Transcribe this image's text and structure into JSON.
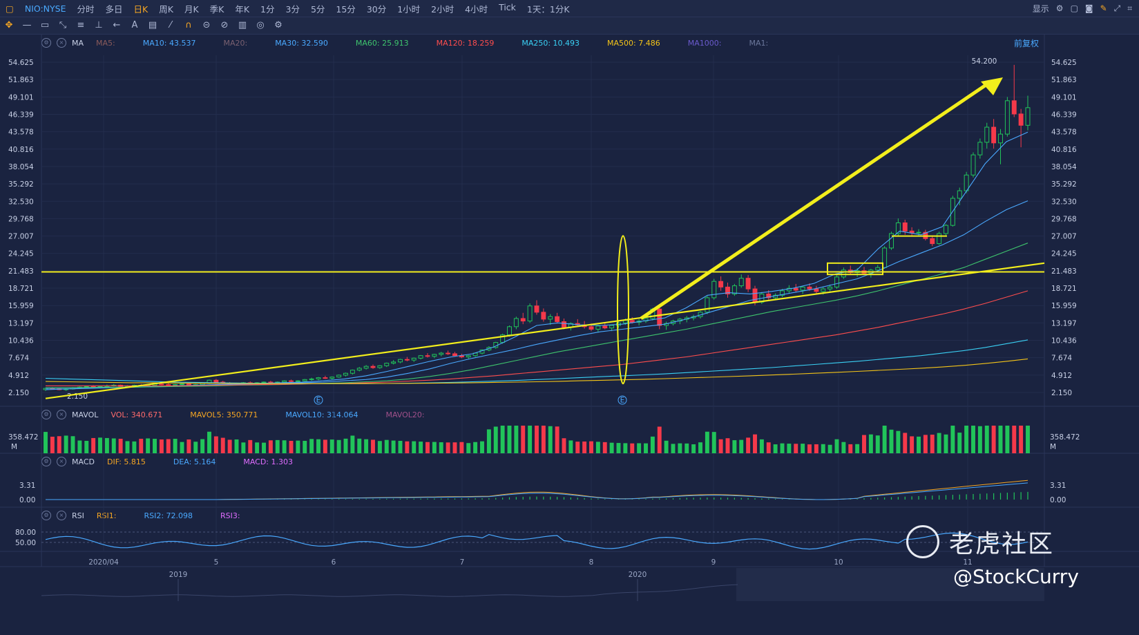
{
  "app": {
    "symbol": "NIO:NYSE",
    "timeframes": [
      "分时",
      "多日",
      "日K",
      "周K",
      "月K",
      "季K",
      "年K",
      "1分",
      "3分",
      "5分",
      "15分",
      "30分",
      "1小时",
      "2小时",
      "4小时",
      "Tick",
      "1天：1分K"
    ],
    "active_timeframe": "日K",
    "display_label": "显示",
    "fq_label": "前复权"
  },
  "indicators": {
    "ma": {
      "name": "MA",
      "items": [
        {
          "label": "MA5:",
          "color": "#8a5a5a"
        },
        {
          "label": "MA10: 43.537",
          "color": "#4aa9ff"
        },
        {
          "label": "MA20:",
          "color": "#7a6070"
        },
        {
          "label": "MA30: 32.590",
          "color": "#4aa9ff"
        },
        {
          "label": "MA60: 25.913",
          "color": "#3ec46d"
        },
        {
          "label": "MA120: 18.259",
          "color": "#ff4d4d"
        },
        {
          "label": "MA250: 10.493",
          "color": "#3ad1f5"
        },
        {
          "label": "MA500: 7.486",
          "color": "#f5c518"
        },
        {
          "label": "MA1000:",
          "color": "#6a5acd"
        },
        {
          "label": "MA1:",
          "color": "#6b779b"
        }
      ]
    },
    "mavol": {
      "name": "MAVOL",
      "items": [
        {
          "label": "VOL: 340.671",
          "color": "#ff6b6b"
        },
        {
          "label": "MAVOL5: 350.771",
          "color": "#f5a623"
        },
        {
          "label": "MAVOL10: 314.064",
          "color": "#4aa9ff"
        },
        {
          "label": "MAVOL20:",
          "color": "#a0508a"
        }
      ]
    },
    "macd": {
      "name": "MACD",
      "items": [
        {
          "label": "DIF: 5.815",
          "color": "#f5a623"
        },
        {
          "label": "DEA: 5.164",
          "color": "#4aa9ff"
        },
        {
          "label": "MACD: 1.303",
          "color": "#e06cff"
        }
      ]
    },
    "rsi": {
      "name": "RSI",
      "items": [
        {
          "label": "RSI1:",
          "color": "#f5a623"
        },
        {
          "label": "RSI2: 72.098",
          "color": "#4aa9ff"
        },
        {
          "label": "RSI3:",
          "color": "#e06cff"
        }
      ]
    }
  },
  "chart_data": {
    "type": "candlestick",
    "price_axis_ticks": [
      "54.625",
      "51.863",
      "49.101",
      "46.339",
      "43.578",
      "40.816",
      "38.054",
      "35.292",
      "32.530",
      "29.768",
      "27.007",
      "24.245",
      "21.483",
      "18.721",
      "15.959",
      "13.197",
      "10.436",
      "7.674",
      "4.912",
      "2.150"
    ],
    "ylim": [
      2.15,
      54.625
    ],
    "month_labels": [
      "2020/04",
      "5",
      "6",
      "7",
      "8",
      "9",
      "10",
      "11"
    ],
    "year_labels": [
      "2019",
      "2020"
    ],
    "volume_label": "358.472",
    "volume_unit": "M",
    "macd_ticks": [
      "3.31",
      "0.00"
    ],
    "rsi_ticks": [
      "80.00",
      "50.00"
    ],
    "annotations": {
      "high_label": "54.200",
      "low_label": "2.150",
      "earnings_marker": "E"
    },
    "candles": [
      [
        2.6,
        2.9,
        2.4,
        2.8
      ],
      [
        2.8,
        3.0,
        2.6,
        2.7
      ],
      [
        2.7,
        2.9,
        2.5,
        2.6
      ],
      [
        2.6,
        2.8,
        2.4,
        2.7
      ],
      [
        2.7,
        3.0,
        2.6,
        2.9
      ],
      [
        2.9,
        3.1,
        2.8,
        3.0
      ],
      [
        3.0,
        3.2,
        2.9,
        3.1
      ],
      [
        3.1,
        3.3,
        2.9,
        3.0
      ],
      [
        3.0,
        3.2,
        2.8,
        3.1
      ],
      [
        3.1,
        3.4,
        3.0,
        3.2
      ],
      [
        3.2,
        3.5,
        3.1,
        3.3
      ],
      [
        3.3,
        3.4,
        3.0,
        3.1
      ],
      [
        3.1,
        3.3,
        3.0,
        3.2
      ],
      [
        3.2,
        3.4,
        3.1,
        3.3
      ],
      [
        3.3,
        3.5,
        3.1,
        3.2
      ],
      [
        3.2,
        3.4,
        3.0,
        3.3
      ],
      [
        3.3,
        3.6,
        3.2,
        3.5
      ],
      [
        3.5,
        3.7,
        3.3,
        3.4
      ],
      [
        3.4,
        3.6,
        3.2,
        3.3
      ],
      [
        3.3,
        3.5,
        3.1,
        3.4
      ],
      [
        3.4,
        3.6,
        3.3,
        3.5
      ],
      [
        3.5,
        3.6,
        3.2,
        3.3
      ],
      [
        3.3,
        3.5,
        3.2,
        3.4
      ],
      [
        3.4,
        3.7,
        3.3,
        3.6
      ],
      [
        3.6,
        4.2,
        3.5,
        4.1
      ],
      [
        4.1,
        4.3,
        3.7,
        3.8
      ],
      [
        3.8,
        4.0,
        3.5,
        3.6
      ],
      [
        3.6,
        3.8,
        3.4,
        3.5
      ],
      [
        3.5,
        3.7,
        3.3,
        3.6
      ],
      [
        3.6,
        3.8,
        3.5,
        3.7
      ],
      [
        3.7,
        3.9,
        3.5,
        3.6
      ],
      [
        3.6,
        3.8,
        3.5,
        3.7
      ],
      [
        3.7,
        3.9,
        3.6,
        3.8
      ],
      [
        3.8,
        4.0,
        3.6,
        3.7
      ],
      [
        3.7,
        3.9,
        3.5,
        3.8
      ],
      [
        3.8,
        4.1,
        3.7,
        4.0
      ],
      [
        4.0,
        4.2,
        3.8,
        3.9
      ],
      [
        3.9,
        4.1,
        3.7,
        4.0
      ],
      [
        4.0,
        4.3,
        3.9,
        4.2
      ],
      [
        4.2,
        4.5,
        4.0,
        4.3
      ],
      [
        4.3,
        4.6,
        4.1,
        4.5
      ],
      [
        4.5,
        4.8,
        4.3,
        4.4
      ],
      [
        4.4,
        4.7,
        4.2,
        4.6
      ],
      [
        4.6,
        5.0,
        4.5,
        4.9
      ],
      [
        4.9,
        5.3,
        4.7,
        5.2
      ],
      [
        5.2,
        5.8,
        5.0,
        5.7
      ],
      [
        5.7,
        6.2,
        5.5,
        6.0
      ],
      [
        6.0,
        6.5,
        5.8,
        6.3
      ],
      [
        6.3,
        6.6,
        5.9,
        6.1
      ],
      [
        6.1,
        6.5,
        5.9,
        6.4
      ],
      [
        6.4,
        6.9,
        6.2,
        6.8
      ],
      [
        6.8,
        7.3,
        6.6,
        7.0
      ],
      [
        7.0,
        7.5,
        6.8,
        7.4
      ],
      [
        7.4,
        7.8,
        7.1,
        7.3
      ],
      [
        7.3,
        7.7,
        7.0,
        7.6
      ],
      [
        7.6,
        8.1,
        7.4,
        8.0
      ],
      [
        8.0,
        8.4,
        7.7,
        7.9
      ],
      [
        7.9,
        8.3,
        7.6,
        8.2
      ],
      [
        8.2,
        8.6,
        7.9,
        8.4
      ],
      [
        8.4,
        8.8,
        8.1,
        8.3
      ],
      [
        8.3,
        8.6,
        7.9,
        8.0
      ],
      [
        8.0,
        8.3,
        7.6,
        7.8
      ],
      [
        7.8,
        8.1,
        7.5,
        8.0
      ],
      [
        8.0,
        8.5,
        7.8,
        8.4
      ],
      [
        8.4,
        9.0,
        8.2,
        8.9
      ],
      [
        8.9,
        9.5,
        8.7,
        9.3
      ],
      [
        9.3,
        10.2,
        9.1,
        10.1
      ],
      [
        10.1,
        11.5,
        9.9,
        11.3
      ],
      [
        11.3,
        12.8,
        11.0,
        12.6
      ],
      [
        12.6,
        14.2,
        12.2,
        13.9
      ],
      [
        13.9,
        14.8,
        13.0,
        13.5
      ],
      [
        13.5,
        16.3,
        13.2,
        15.9
      ],
      [
        15.9,
        16.8,
        14.5,
        14.9
      ],
      [
        14.9,
        15.5,
        13.4,
        13.8
      ],
      [
        13.8,
        14.6,
        12.9,
        14.2
      ],
      [
        14.2,
        14.8,
        13.1,
        13.4
      ],
      [
        13.4,
        13.9,
        12.2,
        12.5
      ],
      [
        12.5,
        13.3,
        12.0,
        13.1
      ],
      [
        13.1,
        13.8,
        12.6,
        12.9
      ],
      [
        12.9,
        13.5,
        12.3,
        12.6
      ],
      [
        12.6,
        13.1,
        11.9,
        12.2
      ],
      [
        12.2,
        12.9,
        11.8,
        12.7
      ],
      [
        12.7,
        13.3,
        12.2,
        12.4
      ],
      [
        12.4,
        12.9,
        11.9,
        12.8
      ],
      [
        12.8,
        13.4,
        12.4,
        13.2
      ],
      [
        13.2,
        13.9,
        12.9,
        13.6
      ],
      [
        13.6,
        14.1,
        13.1,
        13.3
      ],
      [
        13.3,
        13.8,
        12.8,
        13.5
      ],
      [
        13.5,
        14.2,
        13.2,
        13.9
      ],
      [
        13.9,
        15.6,
        13.6,
        15.4
      ],
      [
        15.4,
        16.0,
        12.2,
        12.8
      ],
      [
        12.8,
        13.4,
        12.1,
        13.1
      ],
      [
        13.1,
        13.7,
        12.8,
        13.5
      ],
      [
        13.5,
        14.0,
        13.0,
        13.8
      ],
      [
        13.8,
        14.3,
        13.3,
        14.0
      ],
      [
        14.0,
        14.5,
        13.6,
        14.2
      ],
      [
        14.2,
        15.1,
        13.9,
        14.9
      ],
      [
        14.9,
        17.5,
        14.6,
        17.2
      ],
      [
        17.2,
        20.2,
        16.9,
        19.8
      ],
      [
        19.8,
        20.6,
        18.3,
        18.9
      ],
      [
        18.9,
        19.6,
        17.2,
        17.8
      ],
      [
        17.8,
        19.4,
        17.5,
        19.1
      ],
      [
        19.1,
        20.9,
        18.8,
        20.3
      ],
      [
        20.3,
        20.8,
        18.1,
        18.6
      ],
      [
        18.6,
        19.1,
        16.0,
        16.5
      ],
      [
        16.5,
        18.1,
        16.2,
        17.8
      ],
      [
        17.8,
        18.4,
        16.9,
        17.2
      ],
      [
        17.2,
        17.9,
        16.8,
        17.6
      ],
      [
        17.6,
        18.6,
        17.3,
        18.3
      ],
      [
        18.3,
        19.2,
        17.9,
        18.7
      ],
      [
        18.7,
        19.4,
        18.1,
        18.4
      ],
      [
        18.4,
        19.1,
        17.8,
        18.9
      ],
      [
        18.9,
        19.5,
        18.3,
        18.6
      ],
      [
        18.6,
        19.1,
        17.9,
        18.2
      ],
      [
        18.2,
        18.9,
        17.7,
        18.6
      ],
      [
        18.6,
        19.3,
        18.2,
        18.9
      ],
      [
        18.9,
        20.8,
        18.6,
        20.5
      ],
      [
        20.5,
        22.0,
        20.2,
        21.6
      ],
      [
        21.6,
        22.3,
        20.9,
        21.2
      ],
      [
        21.2,
        21.9,
        20.5,
        21.5
      ],
      [
        21.5,
        22.1,
        20.8,
        21.1
      ],
      [
        21.1,
        21.8,
        20.4,
        21.6
      ],
      [
        21.6,
        22.4,
        21.2,
        22.0
      ],
      [
        22.0,
        25.4,
        21.8,
        25.1
      ],
      [
        25.1,
        27.7,
        24.8,
        27.4
      ],
      [
        27.4,
        29.8,
        27.0,
        29.1
      ],
      [
        29.1,
        29.6,
        27.2,
        27.8
      ],
      [
        27.8,
        28.4,
        27.1,
        27.5
      ],
      [
        27.5,
        28.1,
        26.9,
        27.6
      ],
      [
        27.6,
        28.0,
        26.3,
        26.6
      ],
      [
        26.6,
        27.1,
        25.4,
        25.8
      ],
      [
        25.8,
        27.7,
        25.6,
        27.4
      ],
      [
        27.4,
        28.9,
        27.1,
        28.7
      ],
      [
        28.7,
        33.4,
        28.5,
        33.0
      ],
      [
        33.0,
        34.7,
        31.9,
        34.2
      ],
      [
        34.2,
        37.2,
        33.8,
        36.7
      ],
      [
        36.7,
        40.3,
        36.3,
        39.9
      ],
      [
        39.9,
        42.5,
        39.3,
        41.9
      ],
      [
        41.9,
        45.0,
        40.9,
        44.3
      ],
      [
        44.3,
        45.6,
        40.9,
        41.8
      ],
      [
        41.8,
        44.0,
        38.4,
        43.2
      ],
      [
        43.2,
        49.1,
        42.8,
        48.5
      ],
      [
        48.5,
        54.2,
        45.9,
        46.4
      ],
      [
        46.4,
        47.2,
        41.1,
        44.6
      ],
      [
        44.6,
        49.3,
        43.8,
        47.4
      ]
    ],
    "moving_averages": [
      {
        "name": "MA10",
        "color": "#4aa9ff",
        "values": [
          2.6,
          2.7,
          2.8,
          2.9,
          3.0,
          3.1,
          3.2,
          3.3,
          3.4,
          3.5,
          3.6,
          3.7,
          3.8,
          4.0,
          4.3,
          4.8,
          5.5,
          6.3,
          7.1,
          7.8,
          8.3,
          9.4,
          11.0,
          12.8,
          13.2,
          12.9,
          12.8,
          13.0,
          13.5,
          14.0,
          15.6,
          17.6,
          18.0,
          17.8,
          18.2,
          18.7,
          19.5,
          21.0,
          21.6,
          25.0,
          27.8,
          27.2,
          28.5,
          33.5,
          38.5,
          42.0,
          43.5
        ]
      },
      {
        "name": "MA30",
        "color": "#4aa9ff",
        "values": [
          2.8,
          2.85,
          2.9,
          2.95,
          3.0,
          3.05,
          3.1,
          3.2,
          3.3,
          3.4,
          3.5,
          3.6,
          3.7,
          3.8,
          4.0,
          4.2,
          4.6,
          5.2,
          5.9,
          6.8,
          7.6,
          8.3,
          9.0,
          9.8,
          10.5,
          11.2,
          11.8,
          12.2,
          12.6,
          13.0,
          13.8,
          14.8,
          15.8,
          16.8,
          17.4,
          18.0,
          18.6,
          19.4,
          20.2,
          21.5,
          23.0,
          24.3,
          25.6,
          27.2,
          29.3,
          31.2,
          32.6
        ]
      },
      {
        "name": "MA60",
        "color": "#3ec46d",
        "values": [
          2.9,
          2.9,
          2.95,
          3.0,
          3.0,
          3.05,
          3.1,
          3.15,
          3.2,
          3.3,
          3.35,
          3.4,
          3.5,
          3.6,
          3.7,
          3.85,
          4.0,
          4.3,
          4.7,
          5.2,
          5.8,
          6.5,
          7.2,
          7.9,
          8.6,
          9.2,
          9.8,
          10.4,
          11.0,
          11.6,
          12.2,
          12.9,
          13.6,
          14.3,
          15.0,
          15.6,
          16.2,
          16.8,
          17.5,
          18.3,
          19.2,
          20.1,
          21.0,
          22.0,
          23.3,
          24.6,
          25.9
        ]
      },
      {
        "name": "MA120",
        "color": "#ff4d4d",
        "values": [
          3.2,
          3.2,
          3.2,
          3.2,
          3.2,
          3.2,
          3.2,
          3.25,
          3.3,
          3.35,
          3.4,
          3.45,
          3.5,
          3.55,
          3.6,
          3.7,
          3.8,
          3.95,
          4.1,
          4.3,
          4.55,
          4.8,
          5.1,
          5.4,
          5.7,
          6.0,
          6.3,
          6.6,
          7.0,
          7.4,
          7.8,
          8.3,
          8.8,
          9.3,
          9.8,
          10.3,
          10.8,
          11.3,
          11.9,
          12.5,
          13.2,
          13.9,
          14.6,
          15.4,
          16.3,
          17.3,
          18.3
        ]
      },
      {
        "name": "MA250",
        "color": "#3ad1f5",
        "values": [
          4.4,
          4.3,
          4.2,
          4.1,
          4.0,
          3.9,
          3.8,
          3.75,
          3.7,
          3.65,
          3.6,
          3.58,
          3.56,
          3.55,
          3.55,
          3.56,
          3.58,
          3.62,
          3.68,
          3.75,
          3.85,
          3.95,
          4.05,
          4.2,
          4.35,
          4.5,
          4.65,
          4.8,
          4.95,
          5.1,
          5.3,
          5.5,
          5.7,
          5.9,
          6.1,
          6.35,
          6.6,
          6.85,
          7.1,
          7.4,
          7.7,
          8.0,
          8.4,
          8.8,
          9.3,
          9.9,
          10.5
        ]
      },
      {
        "name": "MA500",
        "color": "#f5c518",
        "values": [
          3.9,
          3.85,
          3.8,
          3.75,
          3.7,
          3.7,
          3.65,
          3.62,
          3.6,
          3.58,
          3.56,
          3.55,
          3.55,
          3.55,
          3.56,
          3.57,
          3.58,
          3.6,
          3.62,
          3.65,
          3.7,
          3.75,
          3.8,
          3.85,
          3.92,
          4.0,
          4.08,
          4.16,
          4.25,
          4.35,
          4.45,
          4.56,
          4.68,
          4.8,
          4.93,
          5.06,
          5.2,
          5.35,
          5.5,
          5.66,
          5.83,
          6.0,
          6.2,
          6.45,
          6.75,
          7.1,
          7.49
        ]
      }
    ]
  }
}
